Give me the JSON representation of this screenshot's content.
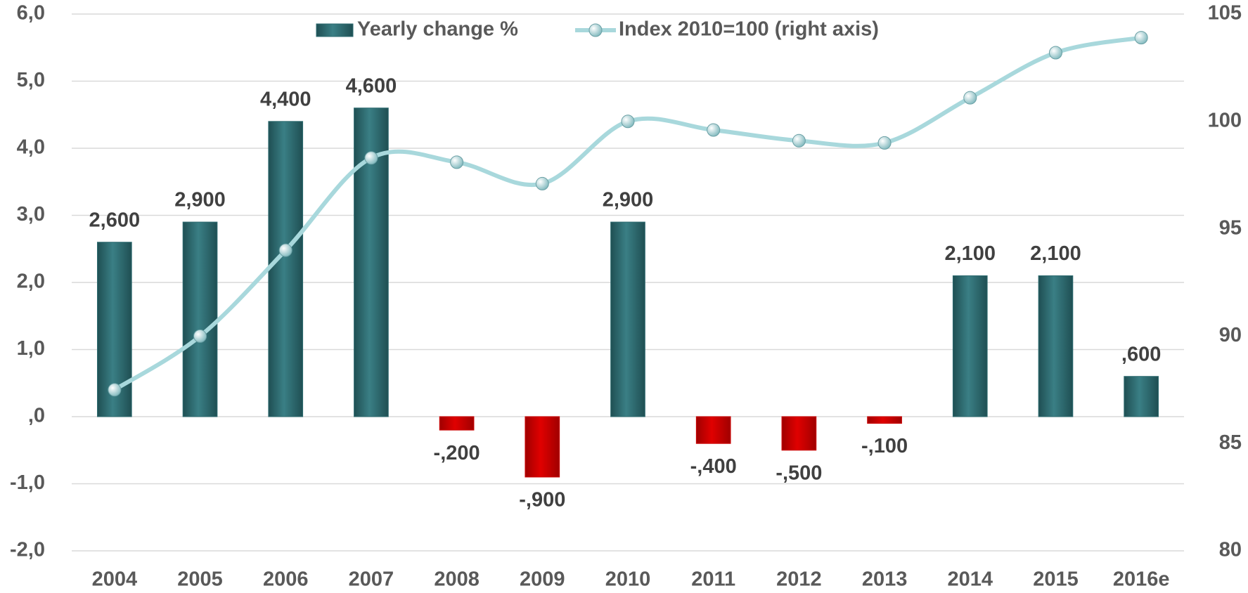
{
  "chart_data": {
    "type": "bar-line",
    "categories": [
      "2004",
      "2005",
      "2006",
      "2007",
      "2008",
      "2009",
      "2010",
      "2011",
      "2012",
      "2013",
      "2014",
      "2015",
      "2016e"
    ],
    "series": [
      {
        "name": "Yearly change %",
        "type": "bar",
        "color": "#2e6b70",
        "negative_color": "#cc0000",
        "values": [
          2.6,
          2.9,
          4.4,
          4.6,
          -0.2,
          -0.9,
          2.9,
          -0.4,
          -0.5,
          -0.1,
          2.1,
          2.1,
          0.6
        ],
        "value_labels": [
          "2,600",
          "2,900",
          "4,400",
          "4,600",
          "-,200",
          "-,900",
          "2,900",
          "-,400",
          "-,500",
          "-,100",
          "2,100",
          "2,100",
          ",600"
        ]
      },
      {
        "name": "Index 2010=100 (right axis)",
        "type": "line",
        "axis": "y2",
        "color": "#a8d8dc",
        "values": [
          87.5,
          90.0,
          94.0,
          98.3,
          98.1,
          97.1,
          100.0,
          99.6,
          99.1,
          99.0,
          101.1,
          103.2,
          103.9
        ]
      }
    ],
    "ylim": [
      -2,
      6
    ],
    "yticks": [
      {
        "value": -2,
        "label": "-2,0"
      },
      {
        "value": -1,
        "label": "-1,0"
      },
      {
        "value": 0,
        "label": ",0"
      },
      {
        "value": 1,
        "label": "1,0"
      },
      {
        "value": 2,
        "label": "2,0"
      },
      {
        "value": 3,
        "label": "3,0"
      },
      {
        "value": 4,
        "label": "4,0"
      },
      {
        "value": 5,
        "label": "5,0"
      },
      {
        "value": 6,
        "label": "6,0"
      }
    ],
    "y2lim": [
      80,
      105
    ],
    "y2ticks": [
      80,
      85,
      90,
      95,
      100,
      105
    ],
    "grid": true,
    "legend": "top"
  }
}
